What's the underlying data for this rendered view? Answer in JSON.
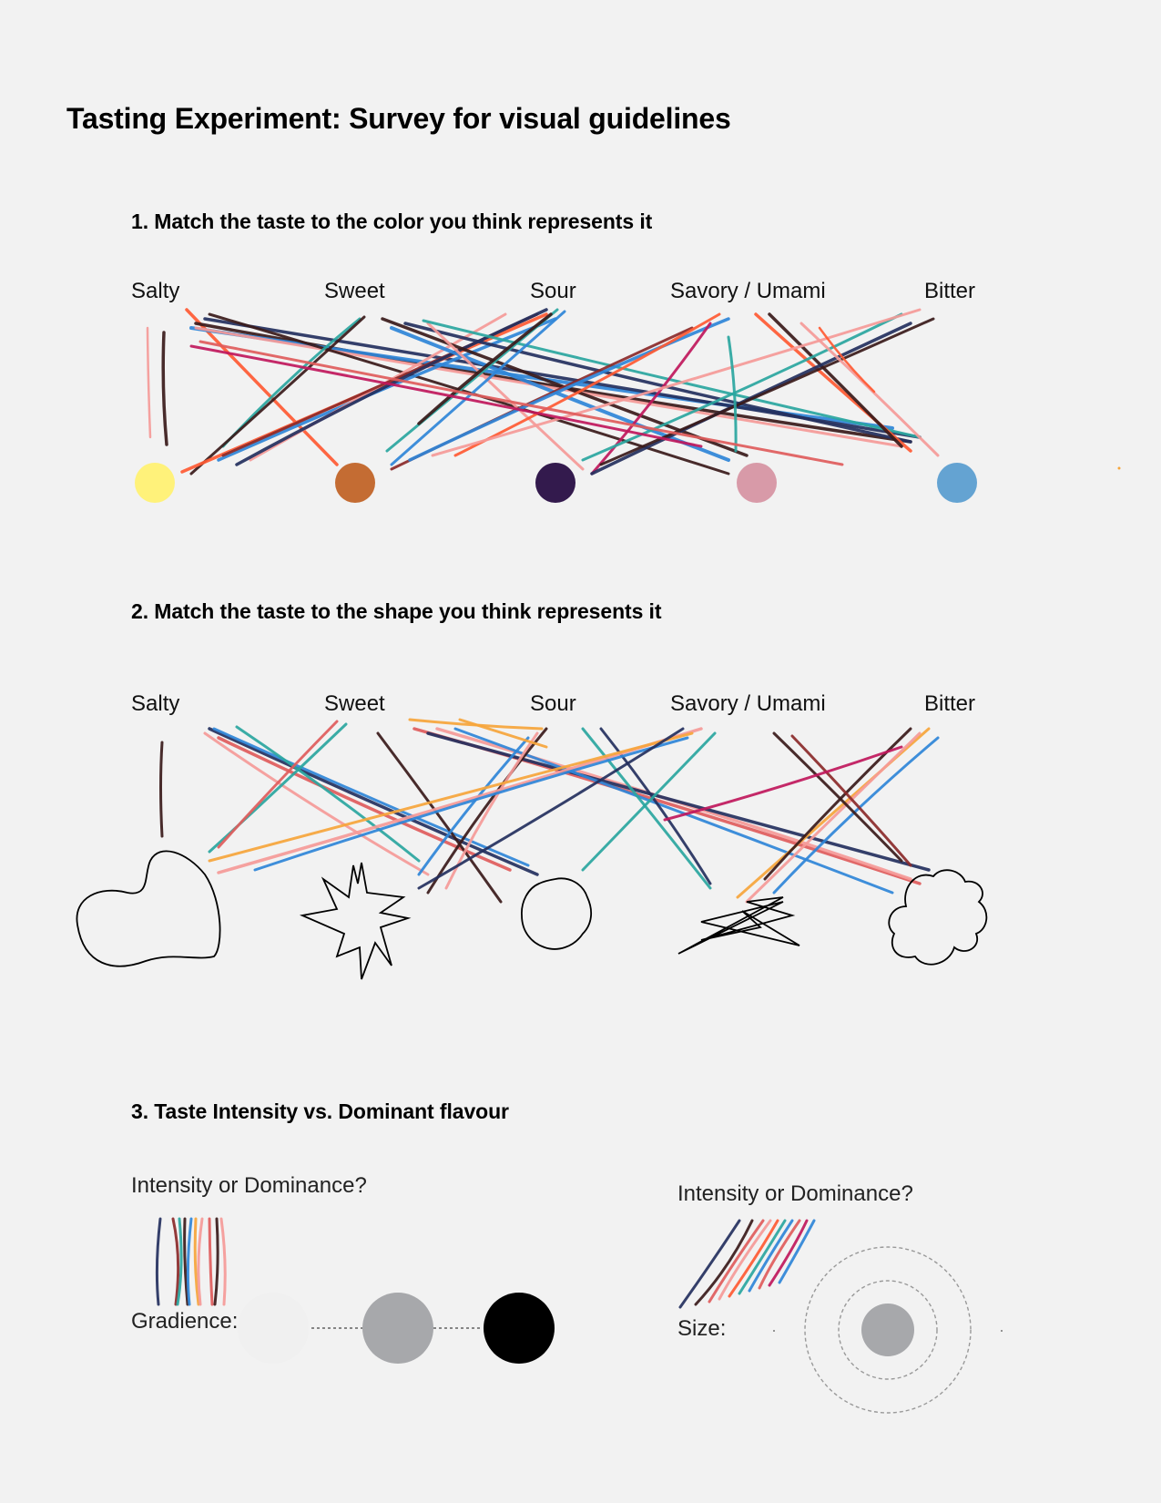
{
  "page_title": "Tasting Experiment: Survey for visual guidelines",
  "section1": {
    "heading": "1. Match the taste to the color you think represents it",
    "tastes": [
      "Salty",
      "Sweet",
      "Sour",
      "Savory / Umami",
      "Bitter"
    ],
    "colors": [
      "#fff27a",
      "#c46c33",
      "#331a4d",
      "#d89aa8",
      "#64a3d2"
    ]
  },
  "section2": {
    "heading": "2. Match the taste to the shape you think represents it",
    "tastes": [
      "Salty",
      "Sweet",
      "Sour",
      "Savory / Umami",
      "Bitter"
    ],
    "shapes": [
      "blob",
      "starburst",
      "wavy-circle",
      "scribble-star",
      "cloud"
    ]
  },
  "section3": {
    "heading": "3. Taste Intensity vs. Dominant flavour",
    "left": {
      "question": "Intensity or Dominance?",
      "label": "Gradience:",
      "circle_colors": [
        "#f0f0f0",
        "#a7a8ab",
        "#000000"
      ]
    },
    "right": {
      "question": "Intensity or Dominance?",
      "label": "Size:",
      "circle_color": "#a7a8ab"
    }
  },
  "stroke_palette": [
    "#ff5a33",
    "#f59a98",
    "#3a1a1a",
    "#2f86d8",
    "#2aa6a0",
    "#24305e",
    "#c0185c",
    "#f6a53b",
    "#8b2a2a",
    "#e05c5c"
  ]
}
